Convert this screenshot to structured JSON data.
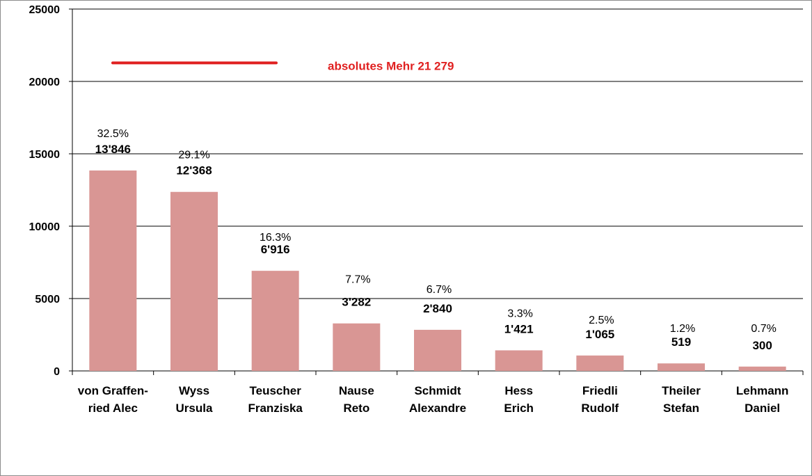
{
  "chart_data": {
    "type": "bar",
    "categories": [
      [
        "von Graffen-",
        "ried Alec"
      ],
      [
        "Wyss",
        "Ursula"
      ],
      [
        "Teuscher",
        "Franziska"
      ],
      [
        "Nause",
        "Reto"
      ],
      [
        "Schmidt",
        "Alexandre"
      ],
      [
        "Hess",
        "Erich"
      ],
      [
        "Friedli",
        "Rudolf"
      ],
      [
        "Theiler",
        "Stefan"
      ],
      [
        "Lehmann",
        "Daniel"
      ]
    ],
    "values": [
      13846,
      12368,
      6916,
      3282,
      2840,
      1421,
      1065,
      519,
      300
    ],
    "value_labels": [
      "13'846",
      "12'368",
      "6'916",
      "3'282",
      "2'840",
      "1'421",
      "1'065",
      "519",
      "300"
    ],
    "percent_labels": [
      "32.5%",
      "29.1%",
      "16.3%",
      "7.7%",
      "6.7%",
      "3.3%",
      "2.5%",
      "1.2%",
      "0.7%"
    ],
    "yticks": [
      "0",
      "5000",
      "10000",
      "15000",
      "20000",
      "25000"
    ],
    "ylim": [
      0,
      25000
    ],
    "grid": true,
    "bar_color": "#d99694",
    "reference_line": {
      "value": 21279,
      "label": "absolutes Mehr 21 279",
      "color": "#e02020"
    }
  }
}
